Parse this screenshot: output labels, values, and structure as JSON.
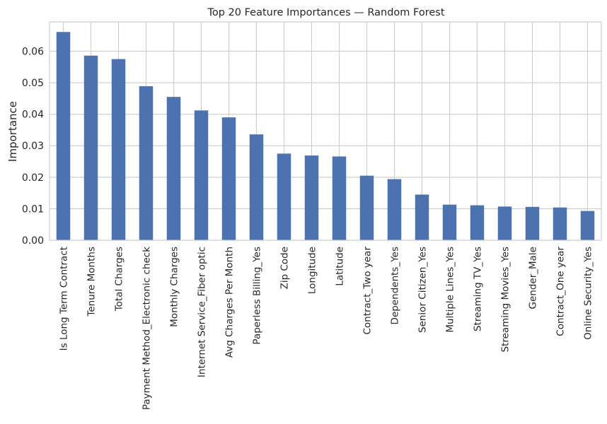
{
  "chart_data": {
    "type": "bar",
    "title": "Top 20 Feature Importances — Random Forest",
    "xlabel": "",
    "ylabel": "Importance",
    "ylim": [
      0,
      0.0693
    ],
    "yticks": [
      0.0,
      0.01,
      0.02,
      0.03,
      0.04,
      0.05,
      0.06
    ],
    "ytick_labels": [
      "0.00",
      "0.01",
      "0.02",
      "0.03",
      "0.04",
      "0.05",
      "0.06"
    ],
    "grid": true,
    "bar_color": "#4c72b0",
    "grid_color": "#cccccc",
    "categories": [
      "Is Long Term Contract",
      "Tenure Months",
      "Total Charges",
      "Payment Method_Electronic check",
      "Monthly Charges",
      "Internet Service_Fiber optic",
      "Avg Charges Per Month",
      "Paperless Billing_Yes",
      "Zip Code",
      "Longitude",
      "Latitude",
      "Contract_Two year",
      "Dependents_Yes",
      "Senior Citizen_Yes",
      "Multiple Lines_Yes",
      "Streaming TV_Yes",
      "Streaming Movies_Yes",
      "Gender_Male",
      "Contract_One year",
      "Online Security_Yes"
    ],
    "values": [
      0.0661,
      0.0586,
      0.0575,
      0.0489,
      0.0455,
      0.0412,
      0.039,
      0.0336,
      0.0275,
      0.0269,
      0.0266,
      0.0205,
      0.0194,
      0.0145,
      0.0113,
      0.0111,
      0.0107,
      0.0106,
      0.0104,
      0.0093
    ]
  }
}
